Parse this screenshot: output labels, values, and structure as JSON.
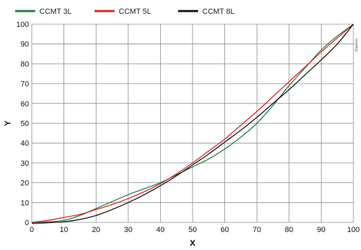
{
  "chart_data": {
    "type": "line",
    "title": "",
    "xlabel": "X",
    "ylabel": "Y",
    "xlim": [
      0,
      100
    ],
    "ylim": [
      0,
      100
    ],
    "x_ticks": [
      0,
      10,
      20,
      30,
      40,
      50,
      60,
      70,
      80,
      90,
      100
    ],
    "y_ticks": [
      0,
      10,
      20,
      30,
      40,
      50,
      60,
      70,
      80,
      90,
      100
    ],
    "grid": true,
    "legend_position": "top-left",
    "watermark": "Danfoss",
    "series": [
      {
        "name": "CCMT 3L",
        "color": "#1e7b46",
        "x": [
          0,
          5,
          10,
          15,
          20,
          25,
          30,
          35,
          40,
          45,
          50,
          55,
          60,
          65,
          70,
          75,
          80,
          85,
          90,
          95,
          100
        ],
        "y": [
          0,
          0.3,
          1,
          3.5,
          7,
          10.5,
          14,
          17,
          20,
          24,
          28,
          32,
          37,
          43,
          50,
          59,
          69,
          78,
          87,
          94,
          100
        ]
      },
      {
        "name": "CCMT 5L",
        "color": "#e02020",
        "x": [
          0,
          5,
          10,
          15,
          20,
          25,
          30,
          35,
          40,
          45,
          50,
          55,
          60,
          65,
          70,
          75,
          80,
          85,
          90,
          95,
          100
        ],
        "y": [
          0,
          1,
          2.5,
          4,
          6.5,
          9,
          12,
          15.5,
          19.5,
          24.5,
          30,
          36,
          42,
          49,
          56,
          63.5,
          71,
          78.5,
          86,
          93,
          100
        ]
      },
      {
        "name": "CCMT 8L",
        "color": "#111111",
        "x": [
          0,
          5,
          10,
          15,
          20,
          25,
          30,
          35,
          40,
          45,
          50,
          55,
          60,
          65,
          70,
          75,
          80,
          85,
          90,
          95,
          100
        ],
        "y": [
          -0.5,
          -0.2,
          0.3,
          1.5,
          3.5,
          6.5,
          10,
          14,
          18.5,
          23.5,
          29,
          34.5,
          40.5,
          46.5,
          53,
          60,
          67,
          74.5,
          82,
          90,
          100
        ]
      }
    ]
  }
}
